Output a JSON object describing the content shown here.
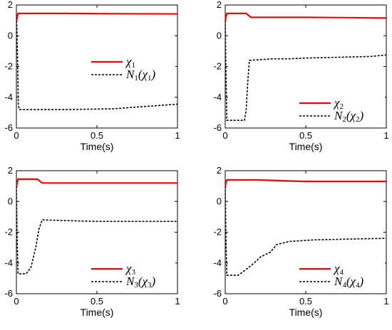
{
  "chart_data": [
    {
      "type": "line",
      "xlabel": "Time(s)",
      "xlim": [
        0,
        1
      ],
      "ylim": [
        -6,
        2
      ],
      "xticks": [
        "0",
        "0.5",
        "1"
      ],
      "yticks": [
        "2",
        "0",
        "-2",
        "-4",
        "-6"
      ],
      "legend_position": "center-right",
      "series": [
        {
          "name": "χ1",
          "legend_main": "χ",
          "legend_sub": "1",
          "color": "#ff0000",
          "style": "solid",
          "points": [
            [
              0,
              0.9
            ],
            [
              0.004,
              1.2
            ],
            [
              0.01,
              1.45
            ],
            [
              0.3,
              1.45
            ],
            [
              0.6,
              1.43
            ],
            [
              1,
              1.42
            ]
          ]
        },
        {
          "name": "N1(χ1)",
          "legend_main": "N",
          "legend_sub": "1",
          "legend_arg": "χ",
          "legend_arg_sub": "1",
          "color": "#000000",
          "style": "dashed",
          "points": [
            [
              0,
              1.2
            ],
            [
              0.003,
              0.5
            ],
            [
              0.008,
              -2.0
            ],
            [
              0.012,
              -4.5
            ],
            [
              0.018,
              -4.8
            ],
            [
              0.3,
              -4.8
            ],
            [
              0.6,
              -4.75
            ],
            [
              0.8,
              -4.6
            ],
            [
              1,
              -4.45
            ]
          ]
        }
      ]
    },
    {
      "type": "line",
      "xlabel": "Time(s)",
      "xlim": [
        0,
        1
      ],
      "ylim": [
        -6,
        2
      ],
      "xticks": [
        "0",
        "0.5",
        "1"
      ],
      "yticks": [
        "2",
        "0",
        "-2",
        "-4",
        "-6"
      ],
      "legend_position": "center-right",
      "series": [
        {
          "name": "χ2",
          "legend_main": "χ",
          "legend_sub": "2",
          "color": "#ff0000",
          "style": "solid",
          "points": [
            [
              0,
              0.9
            ],
            [
              0.004,
              1.2
            ],
            [
              0.01,
              1.45
            ],
            [
              0.13,
              1.45
            ],
            [
              0.16,
              1.2
            ],
            [
              0.5,
              1.2
            ],
            [
              1,
              1.15
            ]
          ]
        },
        {
          "name": "N2(χ2)",
          "legend_main": "N",
          "legend_sub": "2",
          "legend_arg": "χ",
          "legend_arg_sub": "2",
          "color": "#000000",
          "style": "dashed",
          "points": [
            [
              0,
              1.0
            ],
            [
              0.004,
              -2.0
            ],
            [
              0.01,
              -5.5
            ],
            [
              0.12,
              -5.5
            ],
            [
              0.13,
              -4.8
            ],
            [
              0.14,
              -3.0
            ],
            [
              0.15,
              -1.6
            ],
            [
              0.3,
              -1.5
            ],
            [
              0.4,
              -1.5
            ],
            [
              0.5,
              -1.45
            ],
            [
              0.7,
              -1.4
            ],
            [
              0.9,
              -1.35
            ],
            [
              1,
              -1.25
            ]
          ]
        }
      ]
    },
    {
      "type": "line",
      "xlabel": "Time(s)",
      "xlim": [
        0,
        1
      ],
      "ylim": [
        -6,
        2
      ],
      "xticks": [
        "0",
        "0.5",
        "1"
      ],
      "yticks": [
        "2",
        "0",
        "-2",
        "-4",
        "-6"
      ],
      "legend_position": "lower-right",
      "series": [
        {
          "name": "χ3",
          "legend_main": "χ",
          "legend_sub": "3",
          "color": "#ff0000",
          "style": "solid",
          "points": [
            [
              0,
              0.9
            ],
            [
              0.004,
              1.2
            ],
            [
              0.01,
              1.45
            ],
            [
              0.13,
              1.45
            ],
            [
              0.16,
              1.2
            ],
            [
              0.5,
              1.2
            ],
            [
              1,
              1.2
            ]
          ]
        },
        {
          "name": "N3(χ3)",
          "legend_main": "N",
          "legend_sub": "3",
          "legend_arg": "χ",
          "legend_arg_sub": "3",
          "color": "#000000",
          "style": "dashed",
          "points": [
            [
              0,
              1.0
            ],
            [
              0.004,
              -2.0
            ],
            [
              0.01,
              -4.7
            ],
            [
              0.06,
              -4.7
            ],
            [
              0.09,
              -4.3
            ],
            [
              0.12,
              -3.0
            ],
            [
              0.14,
              -1.8
            ],
            [
              0.16,
              -1.2
            ],
            [
              0.5,
              -1.3
            ],
            [
              1,
              -1.3
            ]
          ]
        }
      ]
    },
    {
      "type": "line",
      "xlabel": "Time(s)",
      "xlim": [
        0,
        1
      ],
      "ylim": [
        -6,
        2
      ],
      "xticks": [
        "0",
        "0.5",
        "1"
      ],
      "yticks": [
        "2",
        "0",
        "-2",
        "-4",
        "-6"
      ],
      "legend_position": "lower-right",
      "series": [
        {
          "name": "χ4",
          "legend_main": "χ",
          "legend_sub": "4",
          "color": "#ff0000",
          "style": "solid",
          "points": [
            [
              0,
              0.9
            ],
            [
              0.004,
              1.2
            ],
            [
              0.01,
              1.4
            ],
            [
              0.2,
              1.4
            ],
            [
              0.5,
              1.3
            ],
            [
              1,
              1.3
            ]
          ]
        },
        {
          "name": "N4(χ4)",
          "legend_main": "N",
          "legend_sub": "4",
          "legend_arg": "χ",
          "legend_arg_sub": "4",
          "color": "#000000",
          "style": "dashed",
          "points": [
            [
              0,
              1.0
            ],
            [
              0.004,
              -2.0
            ],
            [
              0.01,
              -4.8
            ],
            [
              0.08,
              -4.8
            ],
            [
              0.12,
              -4.5
            ],
            [
              0.18,
              -4.0
            ],
            [
              0.22,
              -3.6
            ],
            [
              0.28,
              -3.3
            ],
            [
              0.32,
              -2.8
            ],
            [
              0.4,
              -2.6
            ],
            [
              0.55,
              -2.5
            ],
            [
              0.75,
              -2.45
            ],
            [
              1,
              -2.4
            ]
          ]
        }
      ]
    }
  ]
}
